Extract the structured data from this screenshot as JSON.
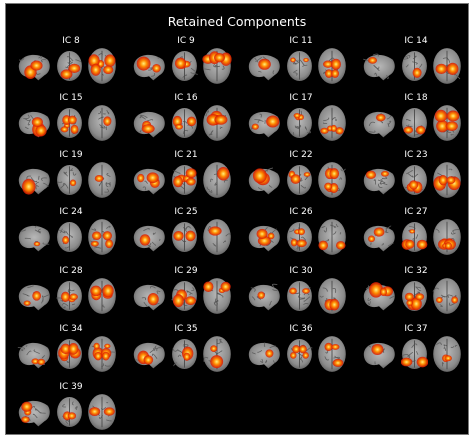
{
  "title": "Retained Components",
  "components": [
    {
      "label": "IC 8"
    },
    {
      "label": "IC 9"
    },
    {
      "label": "IC 11"
    },
    {
      "label": "IC 14"
    },
    {
      "label": "IC 15"
    },
    {
      "label": "IC 16"
    },
    {
      "label": "IC 17"
    },
    {
      "label": "IC 18"
    },
    {
      "label": "IC 19"
    },
    {
      "label": "IC 21"
    },
    {
      "label": "IC 22"
    },
    {
      "label": "IC 23"
    },
    {
      "label": "IC 24"
    },
    {
      "label": "IC 25"
    },
    {
      "label": "IC 26"
    },
    {
      "label": "IC 27"
    },
    {
      "label": "IC 28"
    },
    {
      "label": "IC 29"
    },
    {
      "label": "IC 30"
    },
    {
      "label": "IC 32"
    },
    {
      "label": "IC 34"
    },
    {
      "label": "IC 35"
    },
    {
      "label": "IC 36"
    },
    {
      "label": "IC 37"
    },
    {
      "label": "IC 39"
    }
  ],
  "colors": {
    "background": "#000000",
    "brain": "#9a9a9a",
    "activation_core": "#fff27a",
    "activation_mid": "#ff8a00",
    "activation_edge": "#d81400"
  }
}
